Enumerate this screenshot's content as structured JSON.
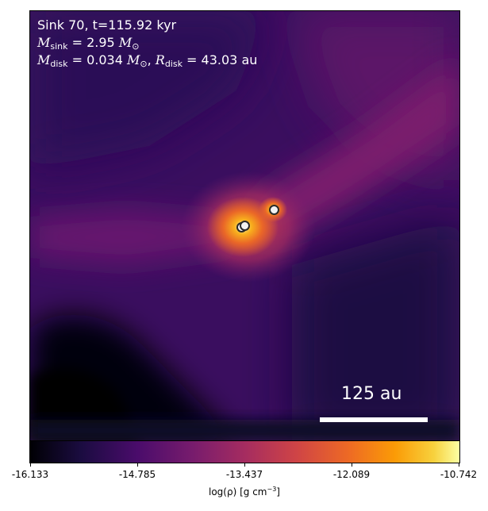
{
  "header": {
    "sink_text": "Sink 70, t=115.92 kyr",
    "msink_symbol": "M",
    "msink_sub": "sink",
    "msink_value": " = 2.95 ",
    "msun_symbol": "M",
    "msun_sub": "⊙",
    "mdisk_symbol": "M",
    "mdisk_sub": "disk",
    "mdisk_value": " = 0.034 ",
    "mdisk_sun_symbol": "M",
    "mdisk_sun_sub": "⊙",
    "rdisk_sep": ", ",
    "rdisk_symbol": "R",
    "rdisk_sub": "disk",
    "rdisk_value": " = 43.03 au"
  },
  "scale_bar": {
    "label": "125 au"
  },
  "colorbar": {
    "tick_labels": [
      "-16.133",
      "-14.785",
      "-13.437",
      "-12.089",
      "-10.742"
    ],
    "label_main": "log(ρ) [g cm",
    "label_sup": "−3",
    "label_end": "]",
    "colormap": "inferno"
  },
  "sinks": {
    "count": 3
  }
}
